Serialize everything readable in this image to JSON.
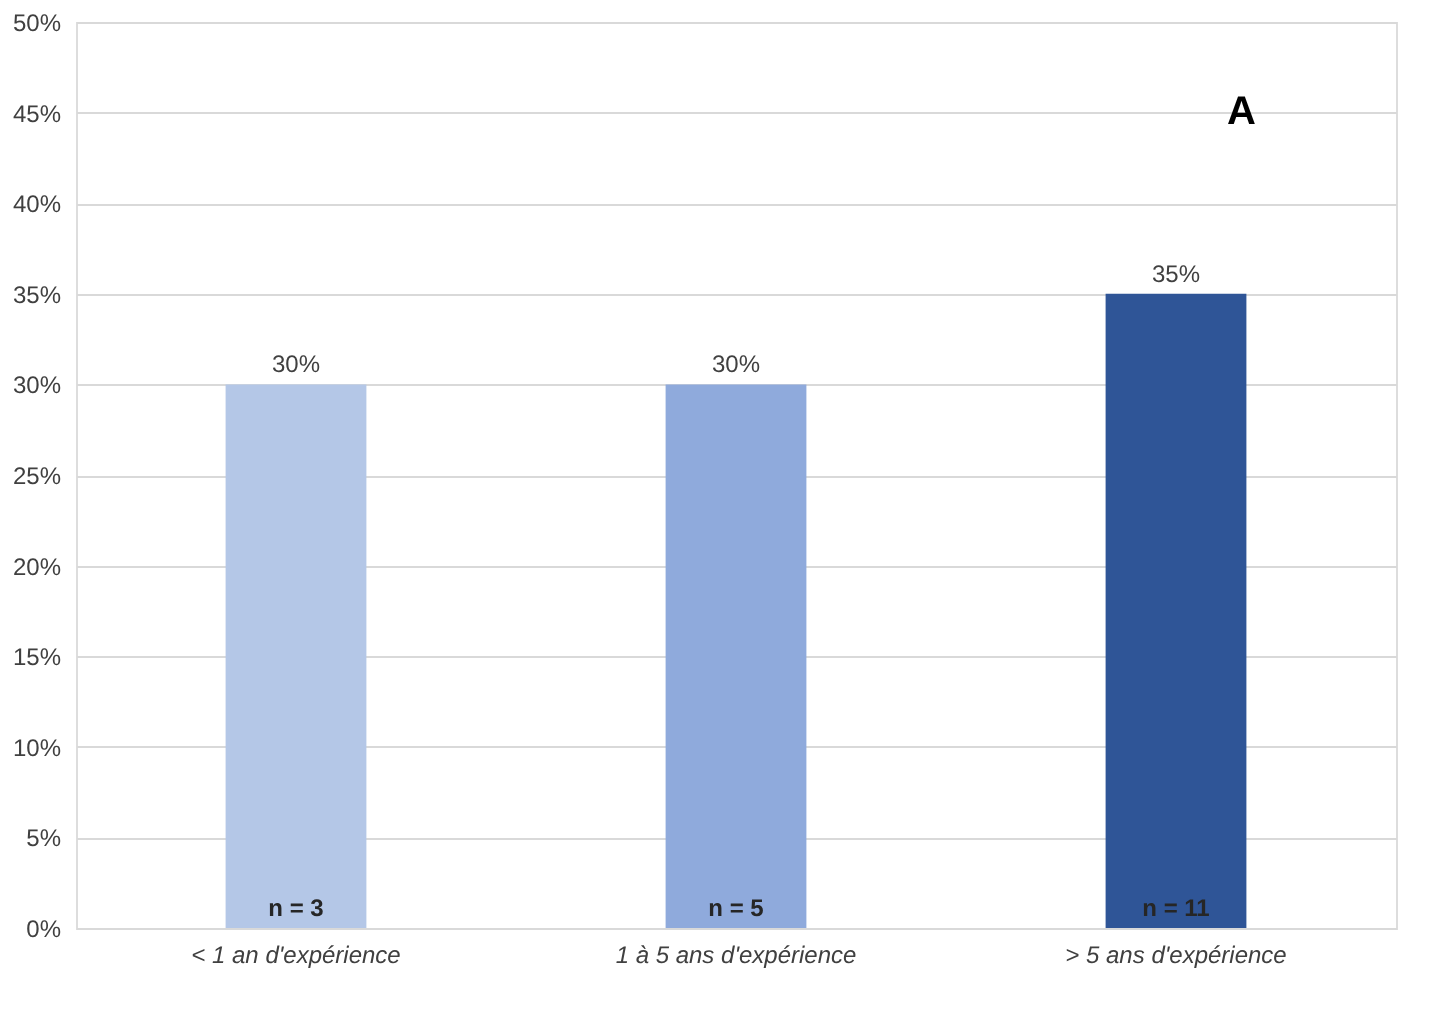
{
  "chart_data": {
    "type": "bar",
    "categories": [
      "< 1 an d'expérience",
      "1 à 5 ans d'expérience",
      "> 5 ans d'expérience"
    ],
    "values": [
      30,
      30,
      35
    ],
    "colors": [
      "#b4c7e7",
      "#8faadc",
      "#2f5597"
    ],
    "value_labels": [
      "30%",
      "30%",
      "35%"
    ],
    "ylim": [
      0,
      50
    ],
    "yticks": [
      {
        "value": 0,
        "label": "0%"
      },
      {
        "value": 5,
        "label": "5%"
      },
      {
        "value": 10,
        "label": "10%"
      },
      {
        "value": 15,
        "label": "15%"
      },
      {
        "value": 20,
        "label": "20%"
      },
      {
        "value": 25,
        "label": "25%"
      },
      {
        "value": 30,
        "label": "30%"
      },
      {
        "value": 35,
        "label": "35%"
      },
      {
        "value": 40,
        "label": "40%"
      },
      {
        "value": 45,
        "label": "45%"
      },
      {
        "value": 50,
        "label": "50%"
      }
    ],
    "grid": "y",
    "annotations": [
      "n = 3",
      "n = 5",
      "n = 11",
      "A"
    ]
  }
}
